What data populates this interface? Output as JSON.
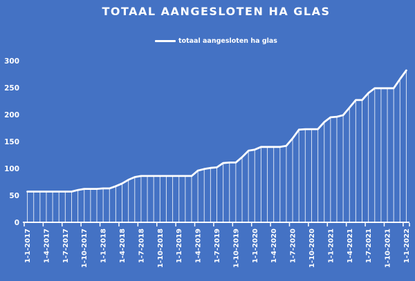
{
  "chart_data": {
    "type": "line",
    "title": "TOTAAL AANGESLOTEN HA GLAS",
    "legend_position": "top-center",
    "grid": false,
    "ylim": [
      0,
      300
    ],
    "y_ticks": [
      0,
      50,
      100,
      150,
      200,
      250,
      300
    ],
    "x_tick_labels": [
      "1-1-2017",
      "1-4-2017",
      "1-7-2017",
      "1-10-2017",
      "1-1-2018",
      "1-4-2018",
      "1-7-2018",
      "1-10-2018",
      "1-1-2019",
      "1-4-2019",
      "1-7-2019",
      "1-10-2019",
      "1-1-2020",
      "1-4-2020",
      "1-7-2020",
      "1-10-2020",
      "1-1-2021",
      "1-4-2021",
      "1-7-2021",
      "1-10-2021",
      "1-1-2022"
    ],
    "points_per_tick_label": 3,
    "series": [
      {
        "name": "totaal aangesloten ha glas",
        "values": [
          57,
          57,
          57,
          57,
          57,
          57,
          57,
          57,
          60,
          62,
          62,
          62,
          63,
          63,
          67,
          72,
          79,
          84,
          86,
          86,
          86,
          86,
          86,
          86,
          86,
          86,
          86,
          96,
          99,
          101,
          102,
          110,
          111,
          111,
          121,
          133,
          135,
          140,
          140,
          140,
          140,
          142,
          156,
          172,
          173,
          173,
          173,
          186,
          195,
          196,
          199,
          213,
          227,
          227,
          240,
          249,
          249,
          249,
          249,
          266,
          282
        ]
      }
    ],
    "style": {
      "drop_lines": true,
      "marker": "none"
    },
    "colors": {
      "background": "#4472C4",
      "line": "#FFFFFF",
      "text": "#FFFFFF",
      "axis": "#FFFFFF"
    }
  }
}
